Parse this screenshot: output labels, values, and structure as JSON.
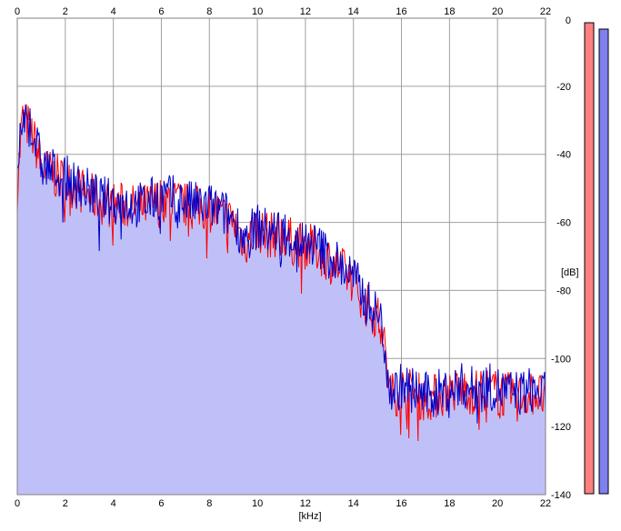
{
  "chart_data": {
    "type": "area",
    "title": "",
    "xlabel": "[kHz]",
    "ylabel": "[dB]",
    "xlim": [
      0,
      22
    ],
    "ylim": [
      -140,
      0
    ],
    "x_ticks": [
      "0",
      "2",
      "4",
      "6",
      "8",
      "10",
      "12",
      "14",
      "16",
      "18",
      "20",
      "22"
    ],
    "y_ticks": [
      "0",
      "-20",
      "-40",
      "-60",
      "-80",
      "-100",
      "-120",
      "-140"
    ],
    "grid": true,
    "legend": "none",
    "colors": {
      "left_channel": "#ff0000",
      "right_channel": "#0000cc",
      "fill": "#c0c0f8",
      "grid": "#a0a0a0",
      "meter_left": "#ff8080",
      "meter_right": "#8080f0"
    },
    "series": [
      {
        "channel": "left",
        "x": [
          0,
          0.2,
          0.5,
          0.8,
          1,
          1.5,
          2,
          2.5,
          3,
          3.5,
          4,
          4.5,
          5,
          5.5,
          6,
          6.5,
          7,
          7.5,
          8,
          8.5,
          9,
          9.5,
          10,
          10.5,
          11,
          11.5,
          12,
          12.5,
          13,
          13.5,
          14,
          14.5,
          15,
          15.2,
          15.4,
          15.6,
          16,
          16.5,
          17,
          17.5,
          18,
          18.5,
          19,
          19.5,
          20,
          20.5,
          21,
          21.5,
          22
        ],
        "values": [
          -50,
          -30,
          -32,
          -38,
          -44,
          -46,
          -48,
          -50,
          -52,
          -54,
          -55,
          -55,
          -56,
          -55,
          -53,
          -54,
          -55,
          -56,
          -56,
          -58,
          -60,
          -66,
          -62,
          -64,
          -63,
          -66,
          -67,
          -68,
          -71,
          -74,
          -77,
          -84,
          -88,
          -91,
          -104,
          -111,
          -109,
          -110,
          -112,
          -111,
          -110,
          -109,
          -110,
          -109,
          -110,
          -111,
          -111,
          -110,
          -112
        ]
      },
      {
        "channel": "right",
        "x": [
          0,
          0.2,
          0.5,
          0.8,
          1,
          1.5,
          2,
          2.5,
          3,
          3.5,
          4,
          4.5,
          5,
          5.5,
          6,
          6.5,
          7,
          7.5,
          8,
          8.5,
          9,
          9.5,
          10,
          10.5,
          11,
          11.5,
          12,
          12.5,
          13,
          13.5,
          14,
          14.5,
          15,
          15.2,
          15.4,
          15.6,
          16,
          16.5,
          17,
          17.5,
          18,
          18.5,
          19,
          19.5,
          20,
          20.5,
          21,
          21.5,
          22
        ],
        "values": [
          -49,
          -29,
          -31,
          -37,
          -43,
          -45,
          -47,
          -49,
          -51,
          -53,
          -54,
          -54,
          -55,
          -54,
          -52,
          -53,
          -54,
          -55,
          -55,
          -57,
          -59,
          -65,
          -61,
          -63,
          -62,
          -65,
          -66,
          -67,
          -70,
          -73,
          -76,
          -83,
          -87,
          -90,
          -103,
          -110,
          -108,
          -109,
          -111,
          -110,
          -109,
          -108,
          -109,
          -108,
          -109,
          -110,
          -110,
          -109,
          -111
        ]
      }
    ],
    "level_meters": [
      {
        "channel": "left",
        "level_db": -140
      },
      {
        "channel": "right",
        "level_db": -140
      }
    ]
  }
}
